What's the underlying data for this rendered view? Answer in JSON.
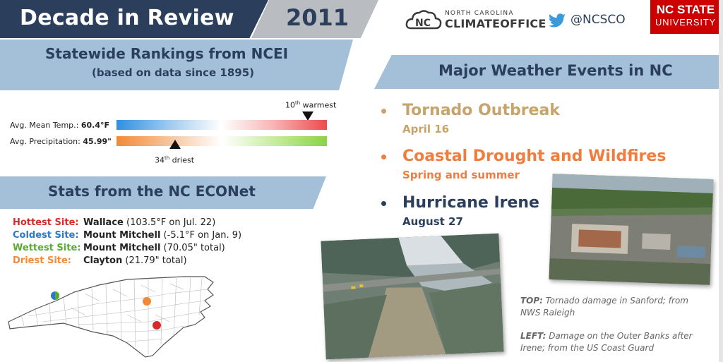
{
  "header": {
    "title": "Decade in Review",
    "year": "2011",
    "cco_line1": "NORTH CAROLINA",
    "cco_line2": "CLIMATEOFFICE",
    "twitter_handle": "@NCSCO",
    "ncsu_line1": "NC STATE",
    "ncsu_line2": "UNIVERSITY"
  },
  "rankings": {
    "title": "Statewide Rankings from NCEI",
    "subtitle": "(based on data since 1895)",
    "temp_label": "Avg. Mean Temp.:",
    "temp_value": "60.4°F",
    "temp_rank_num": "10",
    "temp_rank_suffix": "th",
    "temp_rank_text": " warmest",
    "temp_rank_fraction": 0.91,
    "prec_label": "Avg. Precipitation:",
    "prec_value": "45.99\"",
    "prec_rank_num": "34",
    "prec_rank_suffix": "th",
    "prec_rank_text": " driest",
    "prec_rank_fraction": 0.28,
    "colors": {
      "temp_cold": "#2f8fe0",
      "temp_warm": "#ef4a4a",
      "prec_dry": "#f08a3a",
      "prec_wet": "#8ad247"
    }
  },
  "econet": {
    "title": "Stats from the NC ECONet",
    "rows": [
      {
        "key": "Hottest Site:",
        "site": "Wallace",
        "detail": " (103.5°F on Jul. 22)",
        "color": "#d62b2b"
      },
      {
        "key": "Coldest Site:",
        "site": "Mount Mitchell",
        "detail": " (-5.1°F on Jan. 9)",
        "color": "#2b78c8"
      },
      {
        "key": "Wettest Site:",
        "site": "Mount Mitchell",
        "detail": " (70.05\" total)",
        "color": "#5aaa32"
      },
      {
        "key": "Driest Site:",
        "site": "Clayton",
        "detail": " (21.79\" total)",
        "color": "#f08a3a"
      }
    ]
  },
  "events": {
    "title": "Major Weather Events in NC",
    "items": [
      {
        "title": "Tornado Outbreak",
        "date": "April 16",
        "color": "#c8a46a"
      },
      {
        "title": "Coastal Drought and Wildfires",
        "date": "Spring and summer",
        "color": "#f07d3e"
      },
      {
        "title": "Hurricane Irene",
        "date": "August 27",
        "color": "#2b3f5c"
      }
    ]
  },
  "captions": {
    "top_label": "TOP:",
    "top_text": " Tornado damage in Sanford; from NWS Raleigh",
    "left_label": "LEFT:",
    "left_text": " Damage on the Outer Banks after Irene; from the US Coast Guard"
  }
}
